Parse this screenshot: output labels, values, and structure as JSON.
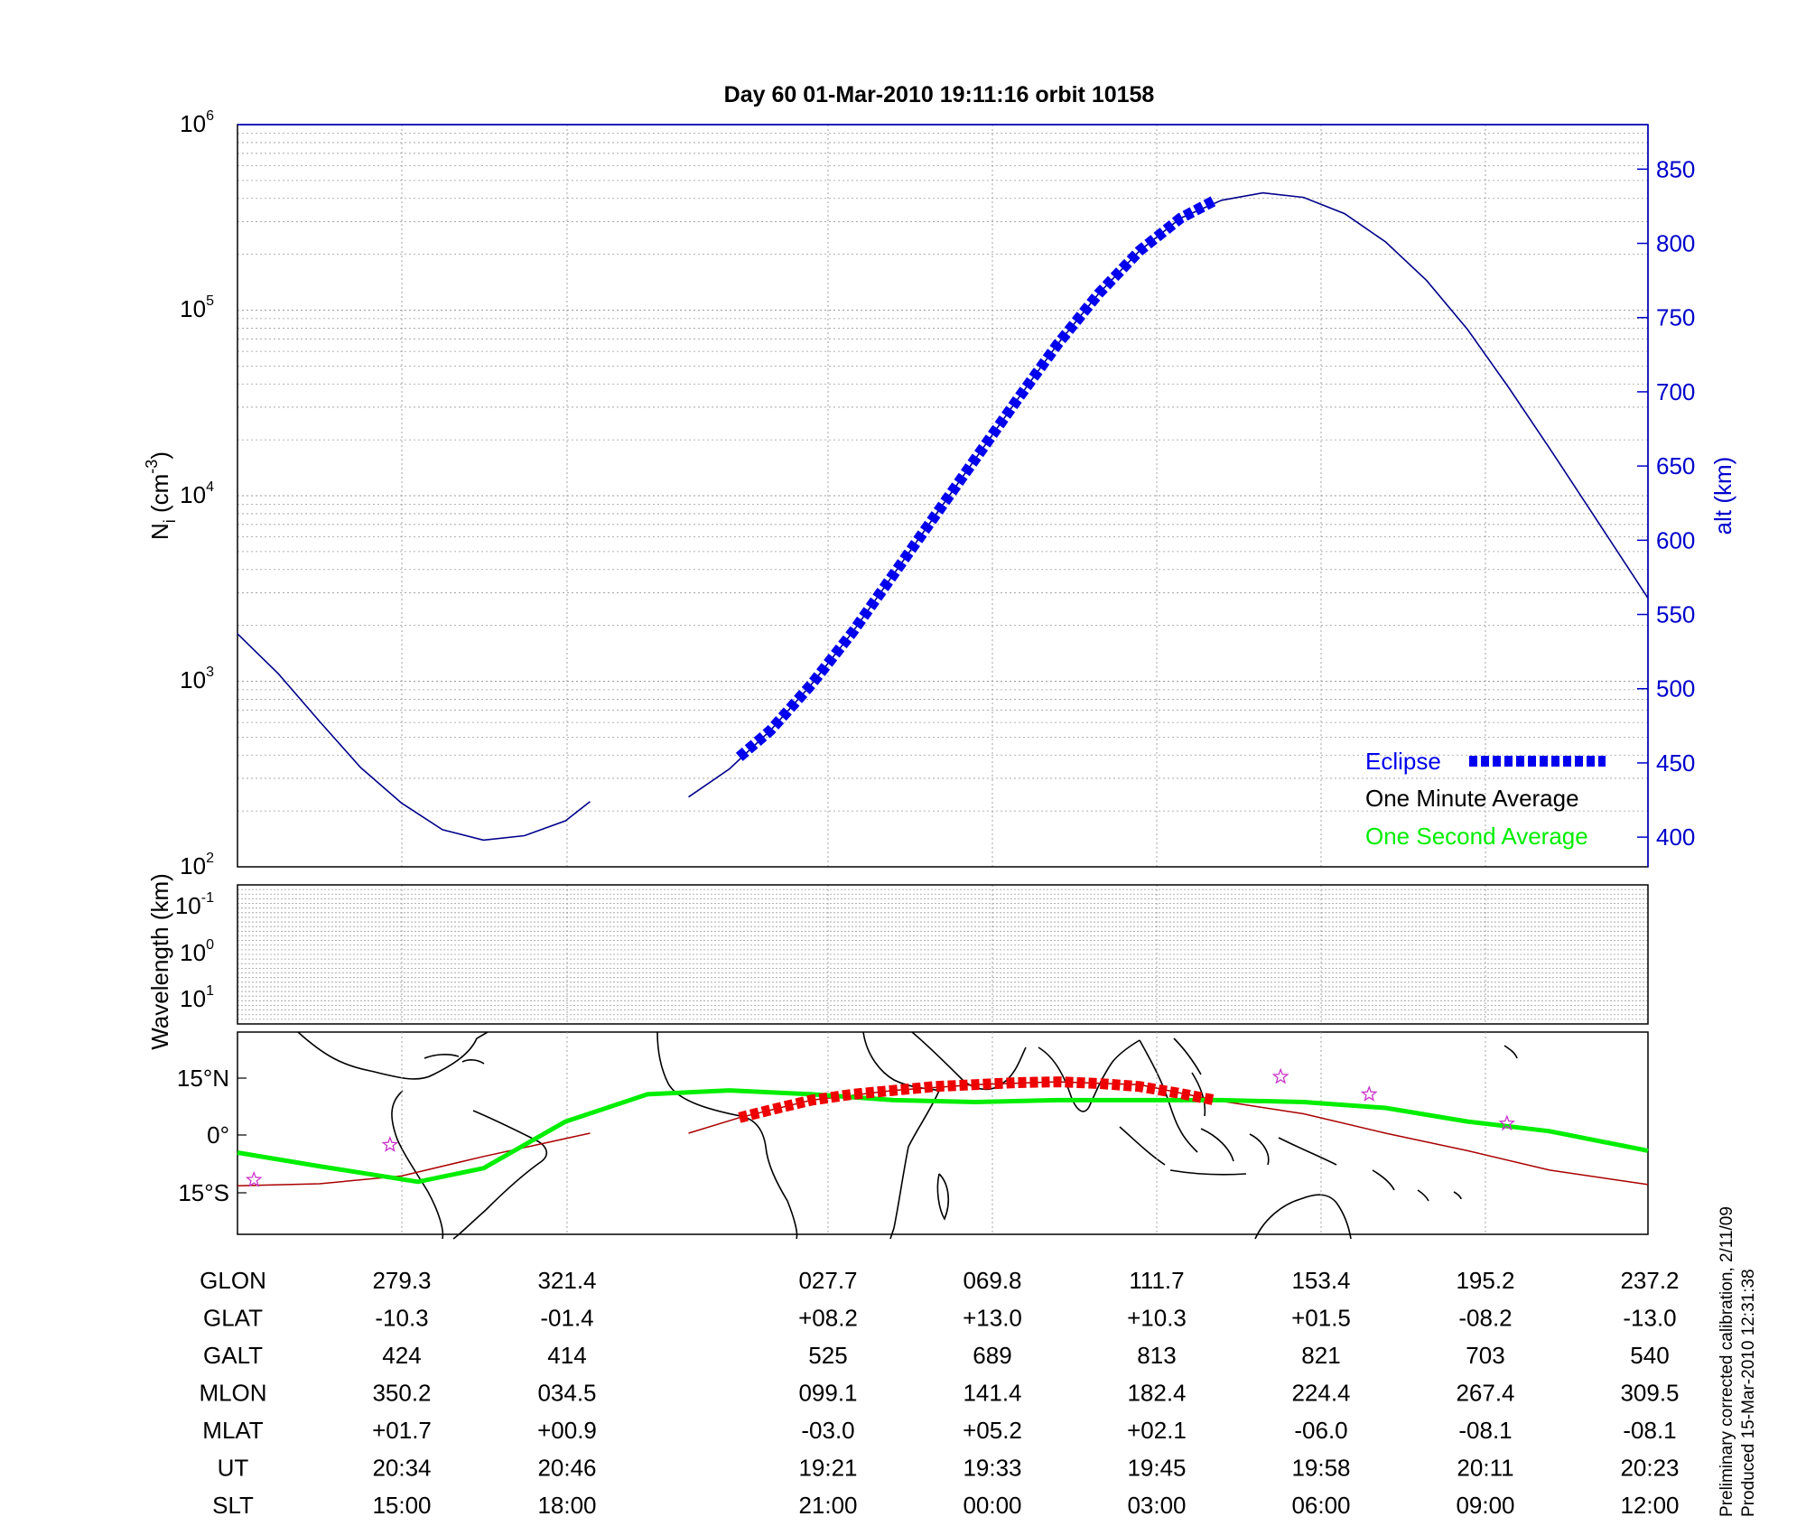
{
  "title": "Day 60  01-Mar-2010 19:11:16   orbit 10158",
  "colors": {
    "altitude_axis": "#0000cc",
    "altitude_line": "#00008b",
    "eclipse": "#0000ee",
    "one_second_average": "#00ee00",
    "one_minute_average": "#000000",
    "eclipse_track": "#ee0000",
    "orbit_track": "#aa0000",
    "stars": "#cc33cc",
    "grid": "#999999"
  },
  "chart_data": [
    {
      "type": "line",
      "panel": "density-altitude",
      "title": "Day 60  01-Mar-2010 19:11:16   orbit 10158",
      "ylabel": "N_i (cm^-3)",
      "ylabel_parts": {
        "base": "N",
        "sub": "i",
        "unit": " (cm",
        "sup": "-3",
        "close": ")"
      },
      "yscale": "log",
      "ylim": [
        100,
        1000000
      ],
      "yticks": [
        {
          "base": "10",
          "exp": "2",
          "value": 100
        },
        {
          "base": "10",
          "exp": "3",
          "value": 1000
        },
        {
          "base": "10",
          "exp": "4",
          "value": 10000
        },
        {
          "base": "10",
          "exp": "5",
          "value": 100000
        },
        {
          "base": "10",
          "exp": "6",
          "value": 1000000
        }
      ],
      "y2label": "alt (km)",
      "y2lim": [
        380,
        880
      ],
      "y2ticks": [
        "400",
        "450",
        "500",
        "550",
        "600",
        "650",
        "700",
        "750",
        "800",
        "850"
      ],
      "xlim": [
        0,
        8.6
      ],
      "grid": true,
      "legend_position": "bottom-right",
      "legend": {
        "eclipse": "Eclipse",
        "one_minute": "One Minute Average",
        "one_second": "One Second Average"
      },
      "series": [
        {
          "name": "alt (km)",
          "axis": "right",
          "segments": [
            {
              "x": [
                0,
                0.25,
                0.5,
                0.75,
                1.0,
                1.25,
                1.5,
                1.75,
                2.0,
                2.15
              ],
              "y": [
                537,
                510,
                478,
                447,
                423,
                405,
                398,
                401,
                411,
                424
              ]
            },
            {
              "x": [
                2.75,
                3.0,
                3.25,
                3.5,
                3.75,
                4.0,
                4.25,
                4.5,
                4.75,
                5.0,
                5.25,
                5.5,
                5.75,
                6.0,
                6.25,
                6.5,
                6.75,
                7.0,
                7.25,
                7.5,
                7.75,
                8.0,
                8.25,
                8.6
              ],
              "y": [
                427,
                446,
                472,
                503,
                538,
                577,
                616,
                655,
                694,
                732,
                766,
                795,
                817,
                829,
                834,
                831,
                820,
                801,
                775,
                742,
                703,
                662,
                620,
                561
              ]
            }
          ]
        },
        {
          "name": "Eclipse",
          "axis": "right",
          "x": [
            3.06,
            3.25,
            3.5,
            3.75,
            4.0,
            4.25,
            4.5,
            4.75,
            5.0,
            5.25,
            5.5,
            5.75,
            5.96
          ],
          "y": [
            454,
            472,
            503,
            538,
            577,
            616,
            655,
            694,
            732,
            766,
            795,
            817,
            829
          ]
        }
      ]
    },
    {
      "type": "line",
      "panel": "wavelength",
      "ylabel": "Wavelength (km)",
      "yticks": [
        {
          "base": "10",
          "exp": "-1"
        },
        {
          "base": "10",
          "exp": "0"
        },
        {
          "base": "10",
          "exp": "1"
        }
      ],
      "grid": true,
      "series": []
    },
    {
      "type": "line",
      "panel": "ground-track-map",
      "yticks": [
        "15°N",
        "0°",
        "15°S"
      ],
      "ylim": [
        -26,
        26
      ],
      "xlim": [
        0,
        8.6
      ],
      "series": [
        {
          "name": "One Second Average",
          "x": [
            0,
            0.5,
            1.1,
            1.5,
            2.0,
            2.5,
            3.0,
            3.5,
            4.0,
            4.5,
            5.0,
            5.5,
            6.0,
            6.5,
            7.0,
            7.5,
            8.0,
            8.6
          ],
          "y": [
            -5,
            -8.5,
            -12.5,
            -9,
            3,
            10,
            11,
            10,
            8.5,
            8,
            8.5,
            8.5,
            8.5,
            8,
            6.5,
            3,
            0.5,
            -4.5
          ]
        },
        {
          "name": "orbit track",
          "segments": [
            {
              "x": [
                0,
                0.5,
                1.0,
                1.5,
                2.15
              ],
              "y": [
                -13.5,
                -13,
                -11,
                -6,
                0
              ]
            },
            {
              "x": [
                2.75,
                3.06,
                3.5,
                4.0,
                4.5,
                5.0,
                5.5,
                5.96,
                6.5,
                7.0,
                7.5,
                8.0,
                8.6
              ],
              "y": [
                0,
                4,
                8.5,
                11,
                12.5,
                13.2,
                12.5,
                8.5,
                5,
                0,
                -4.5,
                -9.5,
                -13.2
              ]
            }
          ]
        },
        {
          "name": "Eclipse",
          "x": [
            3.06,
            3.25,
            3.5,
            3.75,
            4.0,
            4.25,
            4.5,
            4.75,
            5.0,
            5.25,
            5.5,
            5.75,
            5.96
          ],
          "y": [
            4,
            6,
            8.5,
            10,
            11,
            12,
            12.5,
            13,
            13.2,
            12.8,
            12,
            10.2,
            8.5
          ]
        },
        {
          "name": "stars",
          "x": [
            0.1,
            0.93,
            6.36,
            6.9,
            7.74
          ],
          "y": [
            -12,
            -3,
            14.5,
            10,
            2.5
          ]
        }
      ]
    },
    {
      "type": "table",
      "panel": "orbit-ephemeris",
      "rows": [
        {
          "label": "GLON",
          "values": [
            "279.3",
            "321.4",
            "027.7",
            "069.8",
            "111.7",
            "153.4",
            "195.2",
            "237.2"
          ]
        },
        {
          "label": "GLAT",
          "values": [
            "-10.3",
            "-01.4",
            "+08.2",
            "+13.0",
            "+10.3",
            "+01.5",
            "-08.2",
            "-13.0"
          ]
        },
        {
          "label": "GALT",
          "values": [
            "424",
            "414",
            "525",
            "689",
            "813",
            "821",
            "703",
            "540"
          ]
        },
        {
          "label": "MLON",
          "values": [
            "350.2",
            "034.5",
            "099.1",
            "141.4",
            "182.4",
            "224.4",
            "267.4",
            "309.5"
          ]
        },
        {
          "label": "MLAT",
          "values": [
            "+01.7",
            "+00.9",
            "-03.0",
            "+05.2",
            "+02.1",
            "-06.0",
            "-08.1",
            "-08.1"
          ]
        },
        {
          "label": "UT",
          "values": [
            "20:34",
            "20:46",
            "19:21",
            "19:33",
            "19:45",
            "19:58",
            "20:11",
            "20:23"
          ]
        },
        {
          "label": "SLT",
          "values": [
            "15:00",
            "18:00",
            "21:00",
            "00:00",
            "03:00",
            "06:00",
            "09:00",
            "12:00"
          ]
        }
      ]
    }
  ],
  "footer": {
    "calibration_note": "Preliminary corrected calibration, 2/11/09",
    "produced_note": "Produced 15-Mar-2010 12:31:38"
  }
}
